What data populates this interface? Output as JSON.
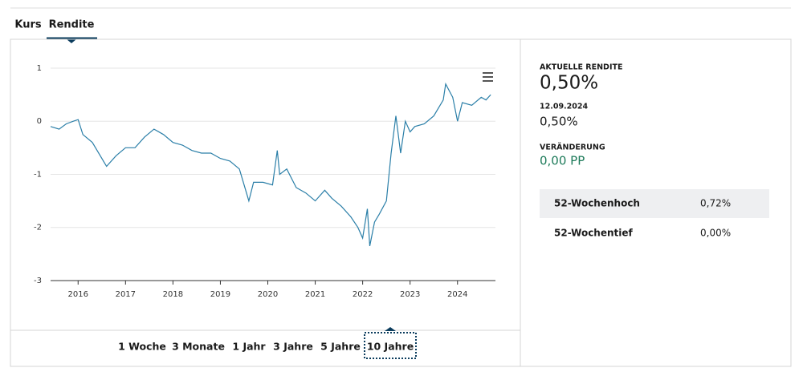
{
  "tabs": [
    "Kurs",
    "Rendite"
  ],
  "chart_data": {
    "type": "line",
    "color": "#2b7fa8",
    "x": [
      2015.42,
      2015.6,
      2015.75,
      2015.9,
      2016.0,
      2016.1,
      2016.3,
      2016.5,
      2016.6,
      2016.8,
      2017.0,
      2017.2,
      2017.4,
      2017.6,
      2017.8,
      2018.0,
      2018.2,
      2018.4,
      2018.6,
      2018.8,
      2019.0,
      2019.2,
      2019.4,
      2019.6,
      2019.7,
      2019.9,
      2020.1,
      2020.2,
      2020.25,
      2020.4,
      2020.6,
      2020.8,
      2021.0,
      2021.2,
      2021.35,
      2021.55,
      2021.75,
      2021.9,
      2022.0,
      2022.1,
      2022.15,
      2022.25,
      2022.35,
      2022.5,
      2022.6,
      2022.7,
      2022.8,
      2022.9,
      2023.0,
      2023.1,
      2023.3,
      2023.5,
      2023.7,
      2023.75,
      2023.9,
      2024.0,
      2024.1,
      2024.3,
      2024.5,
      2024.6,
      2024.7
    ],
    "values": [
      -0.1,
      -0.15,
      -0.05,
      0.0,
      0.03,
      -0.25,
      -0.4,
      -0.7,
      -0.85,
      -0.65,
      -0.5,
      -0.5,
      -0.3,
      -0.15,
      -0.25,
      -0.4,
      -0.45,
      -0.55,
      -0.6,
      -0.6,
      -0.7,
      -0.75,
      -0.9,
      -1.5,
      -1.15,
      -1.15,
      -1.2,
      -0.55,
      -1.0,
      -0.9,
      -1.25,
      -1.35,
      -1.5,
      -1.3,
      -1.45,
      -1.6,
      -1.8,
      -2.0,
      -2.2,
      -1.65,
      -2.35,
      -1.9,
      -1.75,
      -1.5,
      -0.6,
      0.1,
      -0.6,
      0.0,
      -0.2,
      -0.1,
      -0.05,
      0.1,
      0.4,
      0.7,
      0.45,
      0.0,
      0.35,
      0.3,
      0.45,
      0.4,
      0.5
    ],
    "xlim": [
      2015.42,
      2024.8
    ],
    "xticks": [
      2016,
      2017,
      2018,
      2019,
      2020,
      2021,
      2022,
      2023,
      2024
    ],
    "ylim": [
      -3,
      1.15
    ],
    "yticks": [
      1,
      0,
      -1,
      -2,
      -3
    ],
    "grid": true
  },
  "ranges": [
    "1 Woche",
    "3 Monate",
    "1 Jahr",
    "3 Jahre",
    "5 Jahre",
    "10 Jahre"
  ],
  "panel": {
    "current_label": "AKTUELLE RENDITE",
    "current_value": "0,50%",
    "date": "12.09.2024",
    "date_value": "0,50%",
    "change_label": "VERÄNDERUNG",
    "change_value": "0,00 PP",
    "table": [
      [
        "52-Wochenhoch",
        "0,72%"
      ],
      [
        "52-Wochentief",
        "0,00%"
      ]
    ]
  }
}
